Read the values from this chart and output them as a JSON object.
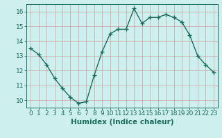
{
  "x": [
    0,
    1,
    2,
    3,
    4,
    5,
    6,
    7,
    8,
    9,
    10,
    11,
    12,
    13,
    14,
    15,
    16,
    17,
    18,
    19,
    20,
    21,
    22,
    23
  ],
  "y": [
    13.5,
    13.1,
    12.4,
    11.5,
    10.8,
    10.2,
    9.8,
    9.9,
    11.7,
    13.3,
    14.5,
    14.8,
    14.8,
    16.2,
    15.2,
    15.6,
    15.6,
    15.8,
    15.6,
    15.3,
    14.4,
    13.0,
    12.4,
    11.9
  ],
  "line_color": "#1a6b5e",
  "bg_color": "#cdf0ee",
  "grid_color": "#c8a0a0",
  "xlabel": "Humidex (Indice chaleur)",
  "ylim": [
    9.5,
    16.5
  ],
  "yticks": [
    10,
    11,
    12,
    13,
    14,
    15,
    16
  ],
  "xticks": [
    0,
    1,
    2,
    3,
    4,
    5,
    6,
    7,
    8,
    9,
    10,
    11,
    12,
    13,
    14,
    15,
    16,
    17,
    18,
    19,
    20,
    21,
    22,
    23
  ],
  "marker": "+",
  "markersize": 4,
  "linewidth": 1.0,
  "markeredgewidth": 1.0,
  "xlabel_fontsize": 7.5,
  "tick_fontsize": 6.5
}
